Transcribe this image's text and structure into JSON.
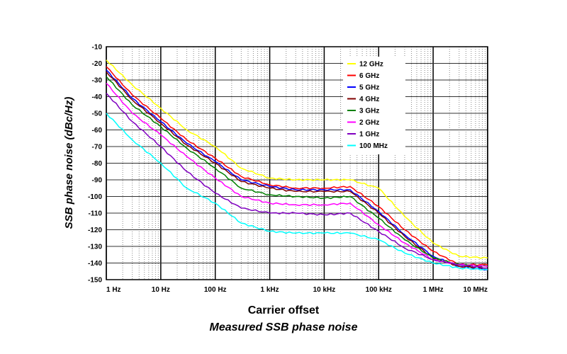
{
  "chart_data": {
    "type": "line",
    "title": "",
    "caption": "Measured SSB phase noise",
    "xlabel": "Carrier offset",
    "ylabel": "SSB phase noise (dBc/Hz)",
    "x_scale": "log",
    "x_ticks": [
      {
        "value": 1,
        "label": "1 Hz"
      },
      {
        "value": 10,
        "label": "10 Hz"
      },
      {
        "value": 100,
        "label": "100 Hz"
      },
      {
        "value": 1000,
        "label": "1 kHz"
      },
      {
        "value": 10000,
        "label": "10 kHz"
      },
      {
        "value": 100000,
        "label": "100 kHz"
      },
      {
        "value": 1000000,
        "label": "1 MHz"
      },
      {
        "value": 10000000,
        "label": "10 MHz"
      }
    ],
    "xlim": [
      1,
      10000000
    ],
    "ylim": [
      -150,
      -10
    ],
    "y_ticks": [
      -10,
      -20,
      -30,
      -40,
      -50,
      -60,
      -70,
      -80,
      -90,
      -100,
      -110,
      -120,
      -130,
      -140,
      -150
    ],
    "grid": true,
    "legend_position": "top-right",
    "series": [
      {
        "name": "12 GHz",
        "color": "#ffff00",
        "x": [
          1,
          3,
          10,
          30,
          100,
          300,
          1000,
          3000,
          10000,
          30000,
          100000,
          300000,
          1000000,
          3000000,
          10000000
        ],
        "y": [
          -18,
          -33,
          -47,
          -60,
          -70,
          -83,
          -89,
          -90,
          -90,
          -90,
          -95,
          -112,
          -128,
          -136,
          -137
        ]
      },
      {
        "name": "6 GHz",
        "color": "#ff0000",
        "x": [
          1,
          3,
          10,
          30,
          100,
          300,
          1000,
          3000,
          10000,
          30000,
          100000,
          300000,
          1000000,
          3000000,
          10000000
        ],
        "y": [
          -22,
          -39,
          -53,
          -66,
          -77,
          -88,
          -93,
          -95,
          -95,
          -94,
          -106,
          -120,
          -133,
          -141,
          -141
        ]
      },
      {
        "name": "5 GHz",
        "color": "#0000ff",
        "x": [
          1,
          3,
          10,
          30,
          100,
          300,
          1000,
          3000,
          10000,
          30000,
          100000,
          300000,
          1000000,
          3000000,
          10000000
        ],
        "y": [
          -24,
          -41,
          -55,
          -68,
          -79,
          -90,
          -94,
          -96,
          -96,
          -96,
          -109,
          -123,
          -136,
          -142,
          -144
        ]
      },
      {
        "name": "4 GHz",
        "color": "#800000",
        "x": [
          1,
          3,
          10,
          30,
          100,
          300,
          1000,
          3000,
          10000,
          30000,
          100000,
          300000,
          1000000,
          3000000,
          10000000
        ],
        "y": [
          -25,
          -42,
          -56,
          -69,
          -80,
          -91,
          -95,
          -97,
          -97,
          -97,
          -110,
          -124,
          -137,
          -142,
          -143
        ]
      },
      {
        "name": "3 GHz",
        "color": "#008000",
        "x": [
          1,
          3,
          10,
          30,
          100,
          300,
          1000,
          3000,
          10000,
          30000,
          100000,
          300000,
          1000000,
          3000000,
          10000000
        ],
        "y": [
          -28,
          -45,
          -58,
          -71,
          -83,
          -95,
          -99,
          -100,
          -101,
          -100,
          -113,
          -126,
          -137,
          -141,
          -142
        ]
      },
      {
        "name": "2 GHz",
        "color": "#ff00ff",
        "x": [
          1,
          3,
          10,
          30,
          100,
          300,
          1000,
          3000,
          10000,
          30000,
          100000,
          300000,
          1000000,
          3000000,
          10000000
        ],
        "y": [
          -32,
          -50,
          -63,
          -76,
          -89,
          -100,
          -104,
          -105,
          -105,
          -104,
          -117,
          -128,
          -138,
          -141,
          -142
        ]
      },
      {
        "name": "1 GHz",
        "color": "#8000c0",
        "x": [
          1,
          3,
          10,
          30,
          100,
          300,
          1000,
          3000,
          10000,
          30000,
          100000,
          300000,
          1000000,
          3000000,
          10000000
        ],
        "y": [
          -38,
          -55,
          -70,
          -85,
          -98,
          -107,
          -110,
          -110,
          -111,
          -110,
          -121,
          -131,
          -138,
          -141,
          -143
        ]
      },
      {
        "name": "100 MHz",
        "color": "#00ffff",
        "x": [
          1,
          3,
          10,
          30,
          100,
          300,
          1000,
          3000,
          10000,
          30000,
          100000,
          300000,
          1000000,
          3000000,
          10000000
        ],
        "y": [
          -50,
          -66,
          -80,
          -95,
          -104,
          -116,
          -121,
          -122,
          -122,
          -122,
          -126,
          -134,
          -140,
          -143,
          -144
        ]
      }
    ]
  }
}
